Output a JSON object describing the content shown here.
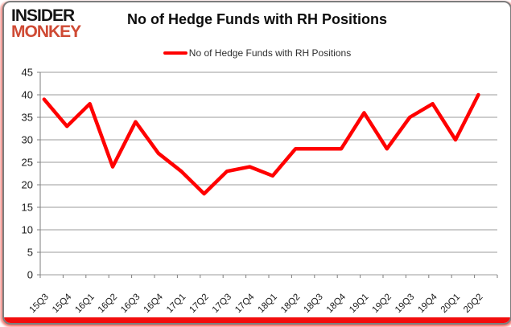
{
  "logo": {
    "line1": "INSIDER",
    "line2": "MONKEY"
  },
  "header": {
    "title": "No of Hedge Funds with RH Positions"
  },
  "legend": {
    "label": "No of Hedge Funds with RH Positions"
  },
  "chart_data": {
    "type": "line",
    "title": "No of Hedge Funds with RH Positions",
    "series_name": "No of Hedge Funds with RH Positions",
    "categories": [
      "15Q3",
      "15Q4",
      "16Q1",
      "16Q2",
      "16Q3",
      "16Q4",
      "17Q1",
      "17Q2",
      "17Q3",
      "17Q4",
      "18Q1",
      "18Q2",
      "18Q3",
      "18Q4",
      "19Q1",
      "19Q2",
      "19Q3",
      "19Q4",
      "20Q1",
      "20Q2"
    ],
    "values": [
      39,
      33,
      38,
      24,
      34,
      27,
      23,
      18,
      23,
      24,
      22,
      28,
      28,
      28,
      36,
      28,
      35,
      38,
      30,
      40
    ],
    "xlabel": "",
    "ylabel": "",
    "ylim": [
      0,
      45
    ],
    "ytick_step": 5,
    "grid": true,
    "legend_position": "top-center"
  },
  "colors": {
    "line_red": "#ff0000",
    "logo_red": "#cf4a34",
    "bottom_bar_red": "#f20d0d",
    "grid_gray": "#9b9b9b",
    "axis_gray": "#7f7f7f",
    "label_black": "#1a1a1a"
  }
}
